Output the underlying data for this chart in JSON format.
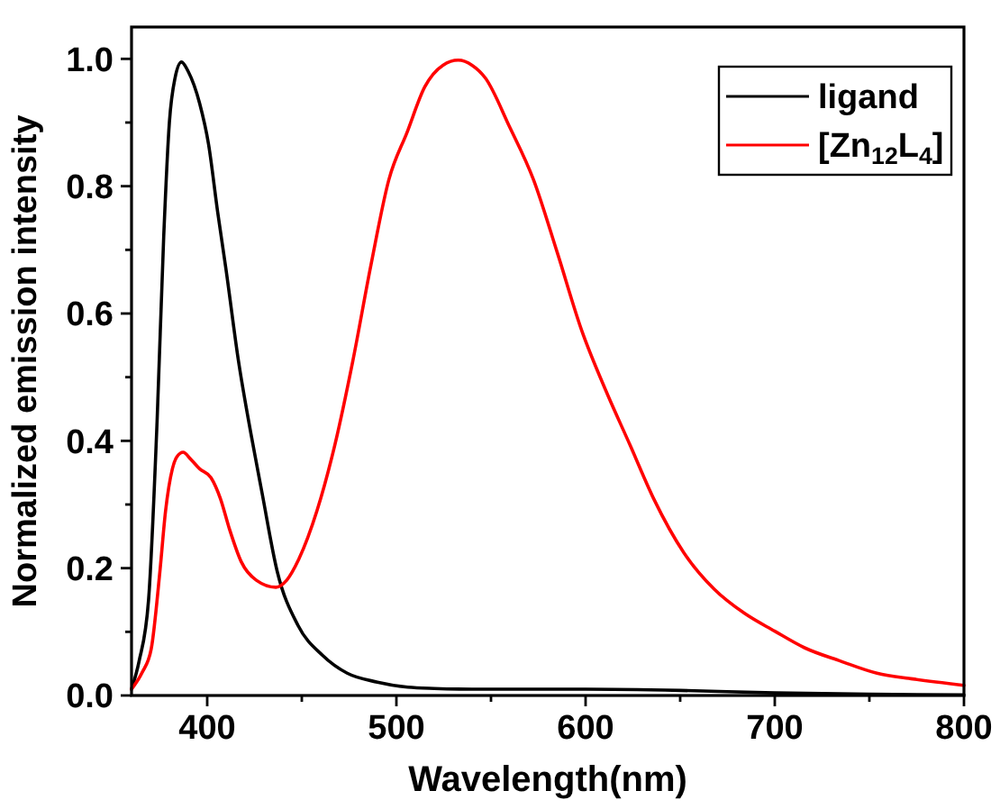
{
  "chart_data": {
    "type": "line",
    "xlabel": "Wavelength(nm)",
    "ylabel": "Normalized emission intensity",
    "xlim": [
      360,
      800
    ],
    "ylim": [
      0,
      1.05
    ],
    "xticks": [
      400,
      {
        "value": 450,
        "label": null
      },
      500,
      {
        "value": 550,
        "label": null
      },
      600,
      {
        "value": 650,
        "label": null
      },
      700,
      {
        "value": 750,
        "label": null
      },
      800
    ],
    "yticks": [
      {
        "value": 0,
        "label": "0.0"
      },
      {
        "value": 0.1,
        "label": null
      },
      0.2,
      {
        "value": 0.3,
        "label": null
      },
      0.4,
      {
        "value": 0.5,
        "label": null
      },
      0.6,
      {
        "value": 0.7,
        "label": null
      },
      0.8,
      {
        "value": 0.9,
        "label": null
      },
      {
        "value": 1,
        "label": "1.0"
      }
    ],
    "legend": "top right",
    "series": [
      {
        "name": "ligand",
        "color": "#000000",
        "x": [
          360,
          364,
          369,
          373.5,
          377,
          380,
          383,
          386.4,
          390,
          396,
          400.7,
          405.5,
          410,
          416.5,
          423,
          429,
          437,
          448,
          461,
          474,
          490,
          506,
          520,
          540,
          600,
          650,
          700,
          750,
          800
        ],
        "values": [
          0.01,
          0.054,
          0.15,
          0.43,
          0.72,
          0.9,
          0.97,
          0.995,
          0.98,
          0.93,
          0.866,
          0.76,
          0.668,
          0.526,
          0.413,
          0.318,
          0.195,
          0.11,
          0.063,
          0.035,
          0.021,
          0.013,
          0.011,
          0.01,
          0.01,
          0.008,
          0.004,
          0.002,
          0.001
        ]
      },
      {
        "name": "[Zn$_{12}$L$_{4}$]",
        "color": "#ff0000",
        "x": [
          360,
          365.6,
          370.4,
          375,
          378,
          381.6,
          384,
          387.3,
          391,
          396,
          402,
          407,
          411.7,
          418,
          426,
          436.3,
          442,
          448.4,
          458,
          467.5,
          477,
          486.6,
          496,
          505.7,
          515,
          524.6,
          532.7,
          540,
          547,
          559.7,
          572.5,
          585,
          598,
          610.7,
          623.4,
          636,
          652,
          668,
          684,
          700,
          715.7,
          734.8,
          754,
          773,
          800
        ],
        "values": [
          0.01,
          0.036,
          0.073,
          0.195,
          0.29,
          0.356,
          0.375,
          0.382,
          0.372,
          0.356,
          0.342,
          0.309,
          0.262,
          0.21,
          0.181,
          0.17,
          0.181,
          0.214,
          0.29,
          0.394,
          0.526,
          0.677,
          0.81,
          0.885,
          0.956,
          0.99,
          0.998,
          0.99,
          0.97,
          0.894,
          0.81,
          0.696,
          0.573,
          0.479,
          0.394,
          0.309,
          0.224,
          0.167,
          0.129,
          0.101,
          0.075,
          0.054,
          0.035,
          0.026,
          0.016
        ]
      }
    ]
  }
}
